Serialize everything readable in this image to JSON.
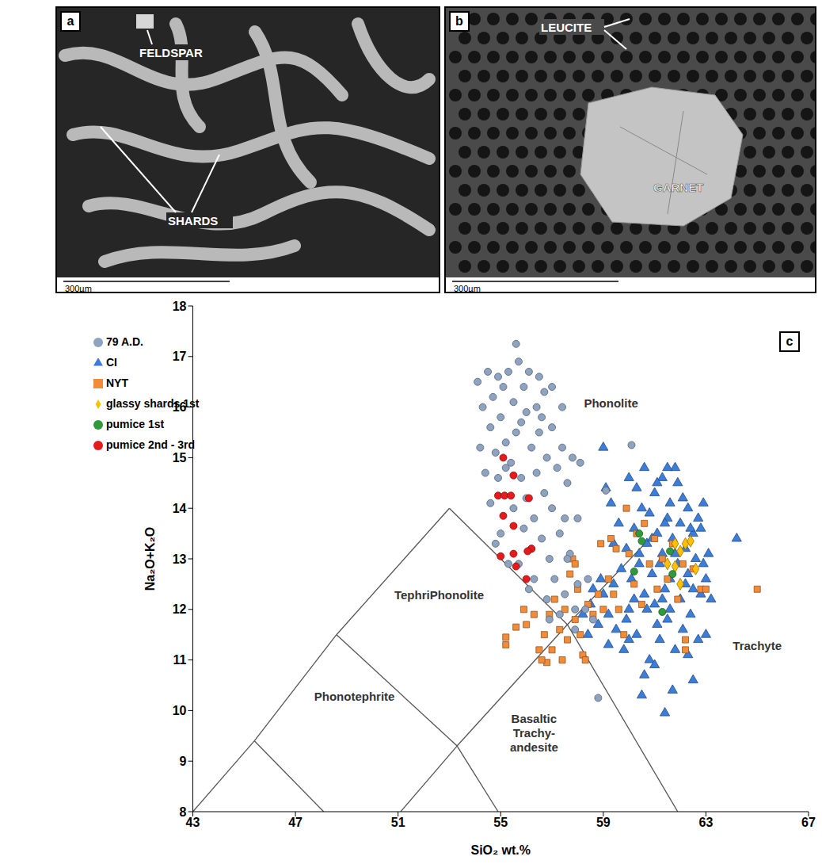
{
  "images": [
    {
      "panel": "a",
      "labels": [
        "FELDSPAR",
        "SHARDS"
      ],
      "scale_bar": "300µm"
    },
    {
      "panel": "b",
      "labels": [
        "LEUCITE",
        "GARNET"
      ],
      "scale_bar": "300µm"
    }
  ],
  "chart_data": {
    "type": "scatter",
    "panel": "c",
    "x_label": "SiO₂ wt.%",
    "y_label": "Na₂O+K₂O",
    "xlim": [
      43,
      67
    ],
    "xticks": [
      43,
      47,
      51,
      55,
      59,
      63,
      67
    ],
    "ylim": [
      8,
      18
    ],
    "yticks": [
      8,
      9,
      10,
      11,
      12,
      13,
      14,
      15,
      16,
      17,
      18
    ],
    "grid": false,
    "legend": "upper left",
    "boundaries": [
      [
        [
          43,
          8
        ],
        [
          45.4,
          9.4
        ],
        [
          48.6,
          11.5
        ],
        [
          53,
          14
        ],
        [
          57.6,
          11.7
        ],
        [
          61.9,
          8
        ]
      ],
      [
        [
          45.4,
          9.4
        ],
        [
          48.1,
          8
        ]
      ],
      [
        [
          48.6,
          11.5
        ],
        [
          53.3,
          9.3
        ],
        [
          54.9,
          8
        ]
      ],
      [
        [
          51.1,
          8
        ],
        [
          53.3,
          9.3
        ],
        [
          57.6,
          11.7
        ],
        [
          61,
          13.5
        ]
      ]
    ],
    "field_labels": [
      {
        "text": "Phonolite",
        "x": 59.3,
        "y": 16.0
      },
      {
        "text": "TephriPhonolite",
        "x": 52.6,
        "y": 12.2
      },
      {
        "text": "Phonotephrite",
        "x": 49.3,
        "y": 10.2
      },
      {
        "text": "Basaltic Trachy-andesite",
        "x": 56.3,
        "y": 9.75
      },
      {
        "text": "Trachyte",
        "x": 65.0,
        "y": 11.2
      }
    ],
    "series": [
      {
        "name": "CI",
        "color": "#3b7dd8",
        "marker": "triangle",
        "values": [
          [
            58.2,
            11.9
          ],
          [
            58.5,
            12.1
          ],
          [
            58.8,
            11.7
          ],
          [
            59.0,
            12.3
          ],
          [
            59.2,
            11.9
          ],
          [
            59.4,
            12.5
          ],
          [
            59.5,
            11.6
          ],
          [
            59.7,
            12.8
          ],
          [
            59.8,
            11.2
          ],
          [
            59.9,
            13.2
          ],
          [
            60.0,
            12.0
          ],
          [
            60.1,
            12.6
          ],
          [
            60.2,
            13.6
          ],
          [
            60.3,
            11.5
          ],
          [
            60.4,
            12.9
          ],
          [
            60.5,
            14.0
          ],
          [
            60.5,
            10.3
          ],
          [
            60.6,
            12.3
          ],
          [
            60.7,
            13.3
          ],
          [
            60.8,
            11.0
          ],
          [
            60.8,
            13.9
          ],
          [
            60.9,
            12.7
          ],
          [
            61.0,
            14.3
          ],
          [
            61.0,
            12.1
          ],
          [
            61.1,
            13.5
          ],
          [
            61.2,
            11.4
          ],
          [
            61.2,
            12.9
          ],
          [
            61.3,
            14.6
          ],
          [
            61.3,
            13.1
          ],
          [
            61.4,
            9.95
          ],
          [
            61.4,
            12.4
          ],
          [
            61.5,
            13.8
          ],
          [
            61.5,
            11.8
          ],
          [
            61.6,
            14.1
          ],
          [
            61.6,
            12.6
          ],
          [
            61.7,
            13.4
          ],
          [
            61.8,
            14.8
          ],
          [
            61.8,
            11.2
          ],
          [
            61.9,
            12.9
          ],
          [
            62.0,
            13.7
          ],
          [
            62.0,
            12.2
          ],
          [
            62.1,
            14.2
          ],
          [
            62.1,
            11.6
          ],
          [
            62.2,
            13.2
          ],
          [
            62.3,
            12.7
          ],
          [
            62.3,
            14.0
          ],
          [
            62.4,
            11.9
          ],
          [
            62.5,
            13.5
          ],
          [
            62.5,
            12.4
          ],
          [
            62.6,
            13.0
          ],
          [
            62.7,
            11.4
          ],
          [
            62.7,
            13.8
          ],
          [
            62.8,
            12.3
          ],
          [
            62.9,
            12.9
          ],
          [
            63.0,
            11.5
          ],
          [
            63.0,
            12.6
          ],
          [
            63.2,
            12.2
          ],
          [
            64.2,
            13.4
          ],
          [
            59.0,
            15.2
          ],
          [
            59.1,
            14.4
          ],
          [
            59.3,
            14.1
          ],
          [
            59.6,
            13.7
          ],
          [
            60.0,
            14.6
          ],
          [
            60.3,
            14.4
          ],
          [
            60.6,
            14.8
          ],
          [
            61.1,
            14.5
          ],
          [
            61.5,
            14.8
          ],
          [
            61.9,
            14.5
          ],
          [
            60.0,
            11.4
          ],
          [
            60.6,
            10.7
          ],
          [
            61.0,
            10.9
          ],
          [
            62.3,
            11.1
          ],
          [
            62.5,
            10.6
          ],
          [
            61.7,
            10.4
          ],
          [
            60.2,
            12.2
          ],
          [
            60.9,
            13.4
          ],
          [
            61.3,
            12.2
          ],
          [
            61.8,
            13.1
          ],
          [
            62.2,
            12.5
          ],
          [
            60.4,
            13.1
          ],
          [
            59.4,
            13.3
          ],
          [
            58.9,
            12.6
          ],
          [
            58.4,
            11.5
          ],
          [
            59.9,
            11.8
          ],
          [
            62.8,
            13.6
          ],
          [
            63.1,
            13.1
          ],
          [
            62.9,
            14.1
          ],
          [
            60.7,
            12.0
          ],
          [
            61.1,
            11.7
          ],
          [
            61.4,
            13.7
          ],
          [
            62.4,
            13.6
          ],
          [
            61.6,
            12.0
          ],
          [
            59.2,
            11.3
          ],
          [
            58.6,
            12.4
          ]
        ]
      },
      {
        "name": "NYT",
        "color": "#f28c38",
        "marker": "square",
        "values": [
          [
            55.2,
            11.3
          ],
          [
            55.2,
            11.45
          ],
          [
            55.6,
            11.65
          ],
          [
            55.9,
            12.0
          ],
          [
            56.0,
            11.7
          ],
          [
            56.3,
            11.9
          ],
          [
            56.5,
            11.2
          ],
          [
            56.7,
            11.5
          ],
          [
            56.8,
            10.95
          ],
          [
            56.9,
            11.9
          ],
          [
            57.0,
            11.2
          ],
          [
            57.1,
            12.2
          ],
          [
            57.3,
            11.6
          ],
          [
            57.4,
            11.0
          ],
          [
            57.5,
            12.0
          ],
          [
            57.6,
            11.4
          ],
          [
            57.7,
            12.7
          ],
          [
            57.8,
            13.0
          ],
          [
            57.9,
            11.8
          ],
          [
            58.0,
            12.4
          ],
          [
            58.1,
            11.5
          ],
          [
            58.2,
            11.1
          ],
          [
            58.3,
            11.0
          ],
          [
            58.4,
            12.1
          ],
          [
            58.6,
            11.9
          ],
          [
            58.8,
            12.3
          ],
          [
            59.0,
            12.0
          ],
          [
            59.2,
            12.6
          ],
          [
            59.4,
            12.3
          ],
          [
            59.5,
            13.2
          ],
          [
            59.6,
            12.0
          ],
          [
            59.8,
            11.5
          ],
          [
            59.9,
            14.0
          ],
          [
            60.0,
            13.1
          ],
          [
            60.2,
            12.5
          ],
          [
            60.3,
            13.5
          ],
          [
            60.5,
            12.1
          ],
          [
            60.6,
            13.7
          ],
          [
            60.8,
            12.9
          ],
          [
            61.0,
            13.4
          ],
          [
            61.1,
            12.4
          ],
          [
            61.3,
            13.0
          ],
          [
            61.5,
            12.6
          ],
          [
            61.7,
            13.3
          ],
          [
            61.9,
            12.2
          ],
          [
            62.1,
            12.9
          ],
          [
            62.2,
            11.2
          ],
          [
            62.2,
            11.4
          ],
          [
            62.5,
            12.8
          ],
          [
            62.8,
            12.4
          ],
          [
            63.0,
            12.4
          ],
          [
            65.0,
            12.4
          ],
          [
            58.9,
            13.3
          ],
          [
            59.3,
            13.4
          ],
          [
            57.9,
            12.9
          ],
          [
            56.6,
            11.0
          ]
        ]
      },
      {
        "name": "glassy shards 1st",
        "color": "#ffc000",
        "marker": "diamond",
        "values": [
          [
            61.8,
            13.3
          ],
          [
            62.2,
            13.3
          ],
          [
            62.4,
            13.35
          ],
          [
            62.0,
            13.15
          ],
          [
            62.6,
            12.8
          ],
          [
            61.8,
            12.85
          ],
          [
            62.0,
            12.5
          ],
          [
            61.5,
            12.9
          ]
        ]
      },
      {
        "name": "pumice 1st",
        "color": "#2f9a3a",
        "marker": "circle",
        "values": [
          [
            60.4,
            13.5
          ],
          [
            60.5,
            13.35
          ],
          [
            61.6,
            13.15
          ],
          [
            60.2,
            12.75
          ],
          [
            61.7,
            12.7
          ],
          [
            61.3,
            11.95
          ]
        ]
      },
      {
        "name": "79 A.D.",
        "color": "#8ea3c0",
        "marker": "circle",
        "values": [
          [
            54.1,
            16.5
          ],
          [
            54.3,
            16.0
          ],
          [
            54.5,
            16.7
          ],
          [
            54.6,
            15.6
          ],
          [
            54.7,
            16.2
          ],
          [
            54.8,
            15.1
          ],
          [
            54.9,
            16.6
          ],
          [
            55.0,
            15.8
          ],
          [
            55.1,
            16.4
          ],
          [
            55.2,
            15.3
          ],
          [
            55.3,
            16.7
          ],
          [
            55.4,
            14.9
          ],
          [
            55.5,
            16.1
          ],
          [
            55.6,
            17.25
          ],
          [
            55.6,
            15.5
          ],
          [
            55.7,
            16.9
          ],
          [
            55.8,
            14.6
          ],
          [
            55.9,
            16.4
          ],
          [
            56.0,
            15.9
          ],
          [
            56.0,
            14.2
          ],
          [
            56.1,
            16.7
          ],
          [
            56.2,
            15.2
          ],
          [
            56.3,
            13.8
          ],
          [
            56.4,
            16.0
          ],
          [
            56.4,
            14.7
          ],
          [
            56.5,
            15.5
          ],
          [
            56.6,
            13.4
          ],
          [
            56.7,
            16.3
          ],
          [
            56.7,
            14.3
          ],
          [
            56.8,
            15.0
          ],
          [
            56.9,
            13.0
          ],
          [
            57.0,
            15.6
          ],
          [
            57.0,
            14.0
          ],
          [
            57.1,
            12.6
          ],
          [
            57.2,
            14.8
          ],
          [
            57.3,
            13.5
          ],
          [
            57.4,
            15.2
          ],
          [
            57.5,
            12.3
          ],
          [
            57.6,
            14.5
          ],
          [
            57.7,
            13.1
          ],
          [
            57.8,
            15.0
          ],
          [
            57.9,
            12.0
          ],
          [
            58.0,
            13.8
          ],
          [
            58.1,
            14.9
          ],
          [
            57.4,
            16.0
          ],
          [
            57.0,
            16.4
          ],
          [
            56.5,
            16.6
          ],
          [
            56.2,
            13.2
          ],
          [
            55.9,
            13.6
          ],
          [
            55.5,
            14.0
          ],
          [
            55.2,
            14.8
          ],
          [
            54.9,
            14.6
          ],
          [
            54.6,
            14.1
          ],
          [
            54.4,
            14.7
          ],
          [
            54.2,
            15.2
          ],
          [
            55.0,
            13.5
          ],
          [
            55.7,
            12.9
          ],
          [
            56.3,
            12.6
          ],
          [
            56.8,
            12.2
          ],
          [
            57.3,
            11.9
          ],
          [
            57.9,
            11.6
          ],
          [
            58.3,
            12.0
          ],
          [
            58.6,
            11.8
          ],
          [
            58.8,
            10.25
          ],
          [
            60.1,
            15.25
          ],
          [
            59.1,
            14.35
          ],
          [
            58.4,
            12.6
          ],
          [
            57.6,
            13.0
          ],
          [
            56.9,
            11.8
          ],
          [
            56.1,
            12.4
          ],
          [
            55.3,
            12.9
          ],
          [
            54.8,
            13.3
          ],
          [
            55.8,
            15.7
          ],
          [
            56.6,
            15.8
          ],
          [
            57.5,
            13.8
          ],
          [
            58.0,
            12.5
          ]
        ]
      },
      {
        "name": "pumice 2nd - 3rd",
        "color": "#e8191b",
        "marker": "circle",
        "values": [
          [
            55.1,
            15.0
          ],
          [
            55.5,
            14.65
          ],
          [
            54.9,
            14.25
          ],
          [
            55.15,
            14.25
          ],
          [
            55.4,
            14.25
          ],
          [
            55.1,
            13.85
          ],
          [
            56.1,
            14.2
          ],
          [
            55.5,
            13.65
          ],
          [
            55.0,
            13.05
          ],
          [
            56.2,
            13.2
          ],
          [
            56.05,
            13.15
          ],
          [
            55.6,
            12.85
          ],
          [
            56.0,
            12.6
          ],
          [
            55.5,
            13.1
          ]
        ]
      }
    ]
  }
}
